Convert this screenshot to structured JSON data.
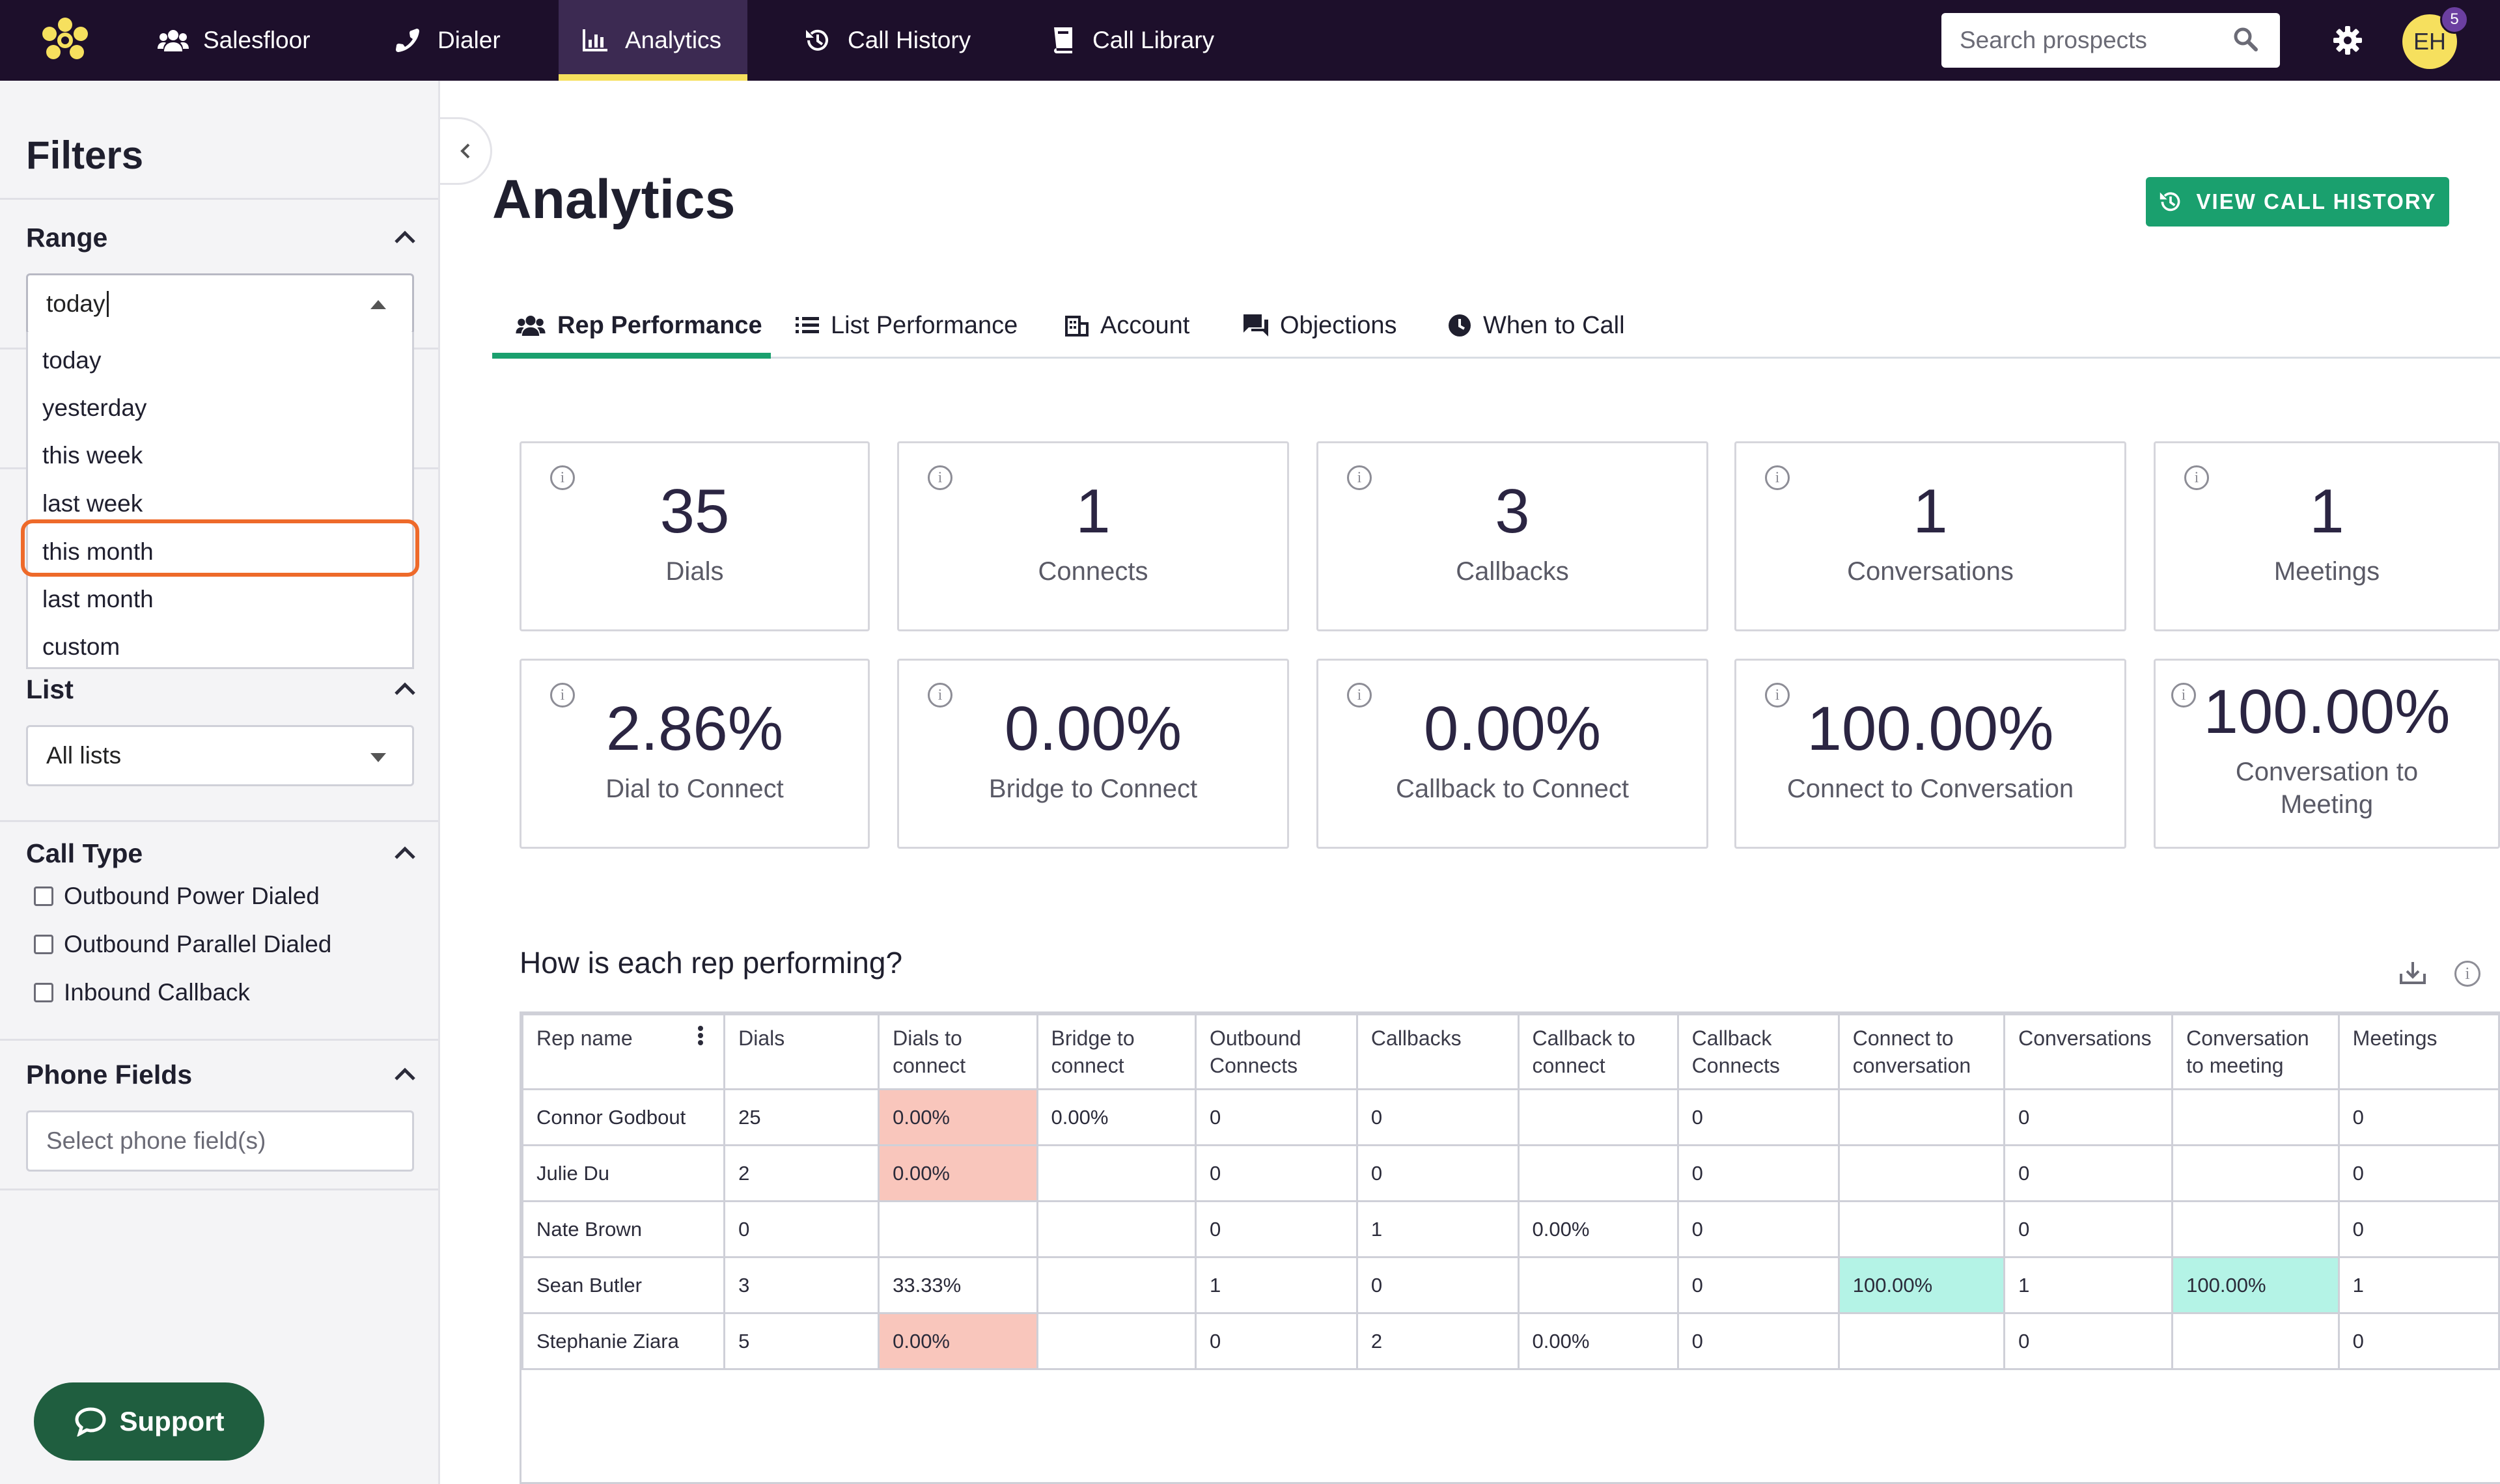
{
  "nav": {
    "items": [
      {
        "label": "Salesfloor",
        "icon": "users-icon"
      },
      {
        "label": "Dialer",
        "icon": "phone-icon"
      },
      {
        "label": "Analytics",
        "icon": "bar-chart-icon",
        "active": true
      },
      {
        "label": "Call History",
        "icon": "history-icon"
      },
      {
        "label": "Call Library",
        "icon": "book-icon"
      }
    ],
    "search_placeholder": "Search prospects",
    "avatar_initials": "EH",
    "notification_count": "5"
  },
  "sidebar": {
    "title": "Filters",
    "range": {
      "title": "Range",
      "input_value": "today",
      "options": [
        "today",
        "yesterday",
        "this week",
        "last week",
        "this month",
        "last month",
        "custom"
      ],
      "highlighted": "this month"
    },
    "list": {
      "title": "List",
      "selected": "All lists"
    },
    "call_type": {
      "title": "Call Type",
      "options": [
        "Outbound Power Dialed",
        "Outbound Parallel Dialed",
        "Inbound Callback"
      ]
    },
    "phone_fields": {
      "title": "Phone Fields",
      "placeholder": "Select phone field(s)"
    },
    "support_label": "Support"
  },
  "main": {
    "title": "Analytics",
    "view_call_history": "VIEW CALL HISTORY",
    "tabs": [
      {
        "label": "Rep Performance",
        "icon": "users-icon",
        "active": true
      },
      {
        "label": "List Performance",
        "icon": "list-icon"
      },
      {
        "label": "Account",
        "icon": "building-icon"
      },
      {
        "label": "Objections",
        "icon": "chat-icon"
      },
      {
        "label": "When to Call",
        "icon": "clock-icon"
      }
    ],
    "stats_row1": [
      {
        "value": "35",
        "label": "Dials"
      },
      {
        "value": "1",
        "label": "Connects"
      },
      {
        "value": "3",
        "label": "Callbacks"
      },
      {
        "value": "1",
        "label": "Conversations"
      },
      {
        "value": "1",
        "label": "Meetings"
      }
    ],
    "stats_row2": [
      {
        "value": "2.86%",
        "label": "Dial to Connect"
      },
      {
        "value": "0.00%",
        "label": "Bridge to Connect"
      },
      {
        "value": "0.00%",
        "label": "Callback to Connect"
      },
      {
        "value": "100.00%",
        "label": "Connect to Conversation"
      },
      {
        "value": "100.00%",
        "label": "Conversation to Meeting"
      }
    ],
    "info_glyph": "i",
    "table_title": "How is each rep performing?",
    "table": {
      "columns": [
        "Rep name",
        "Dials",
        "Dials to connect",
        "Bridge to connect",
        "Outbound Connects",
        "Callbacks",
        "Callback to connect",
        "Callback Connects",
        "Connect to conversation",
        "Conversations",
        "Conversation to meeting",
        "Meetings"
      ],
      "rows": [
        [
          "Connor Godbout",
          "25",
          "0.00%",
          "0.00%",
          "0",
          "0",
          "",
          "0",
          "",
          "0",
          "",
          "0"
        ],
        [
          "Julie Du",
          "2",
          "0.00%",
          "",
          "0",
          "0",
          "",
          "0",
          "",
          "0",
          "",
          "0"
        ],
        [
          "Nate Brown",
          "0",
          "",
          "",
          "0",
          "1",
          "0.00%",
          "0",
          "",
          "0",
          "",
          "0"
        ],
        [
          "Sean Butler",
          "3",
          "33.33%",
          "",
          "1",
          "0",
          "",
          "0",
          "100.00%",
          "1",
          "100.00%",
          "1"
        ],
        [
          "Stephanie Ziara",
          "5",
          "0.00%",
          "",
          "0",
          "2",
          "0.00%",
          "0",
          "",
          "0",
          "",
          "0"
        ]
      ]
    },
    "colors": {
      "accent": "#1aa06e",
      "nav_bg": "#1d0f2b",
      "warn_cell": "#f9c6bc",
      "good_cell": "#b4f3e6",
      "highlight": "#ee6a2a"
    }
  }
}
